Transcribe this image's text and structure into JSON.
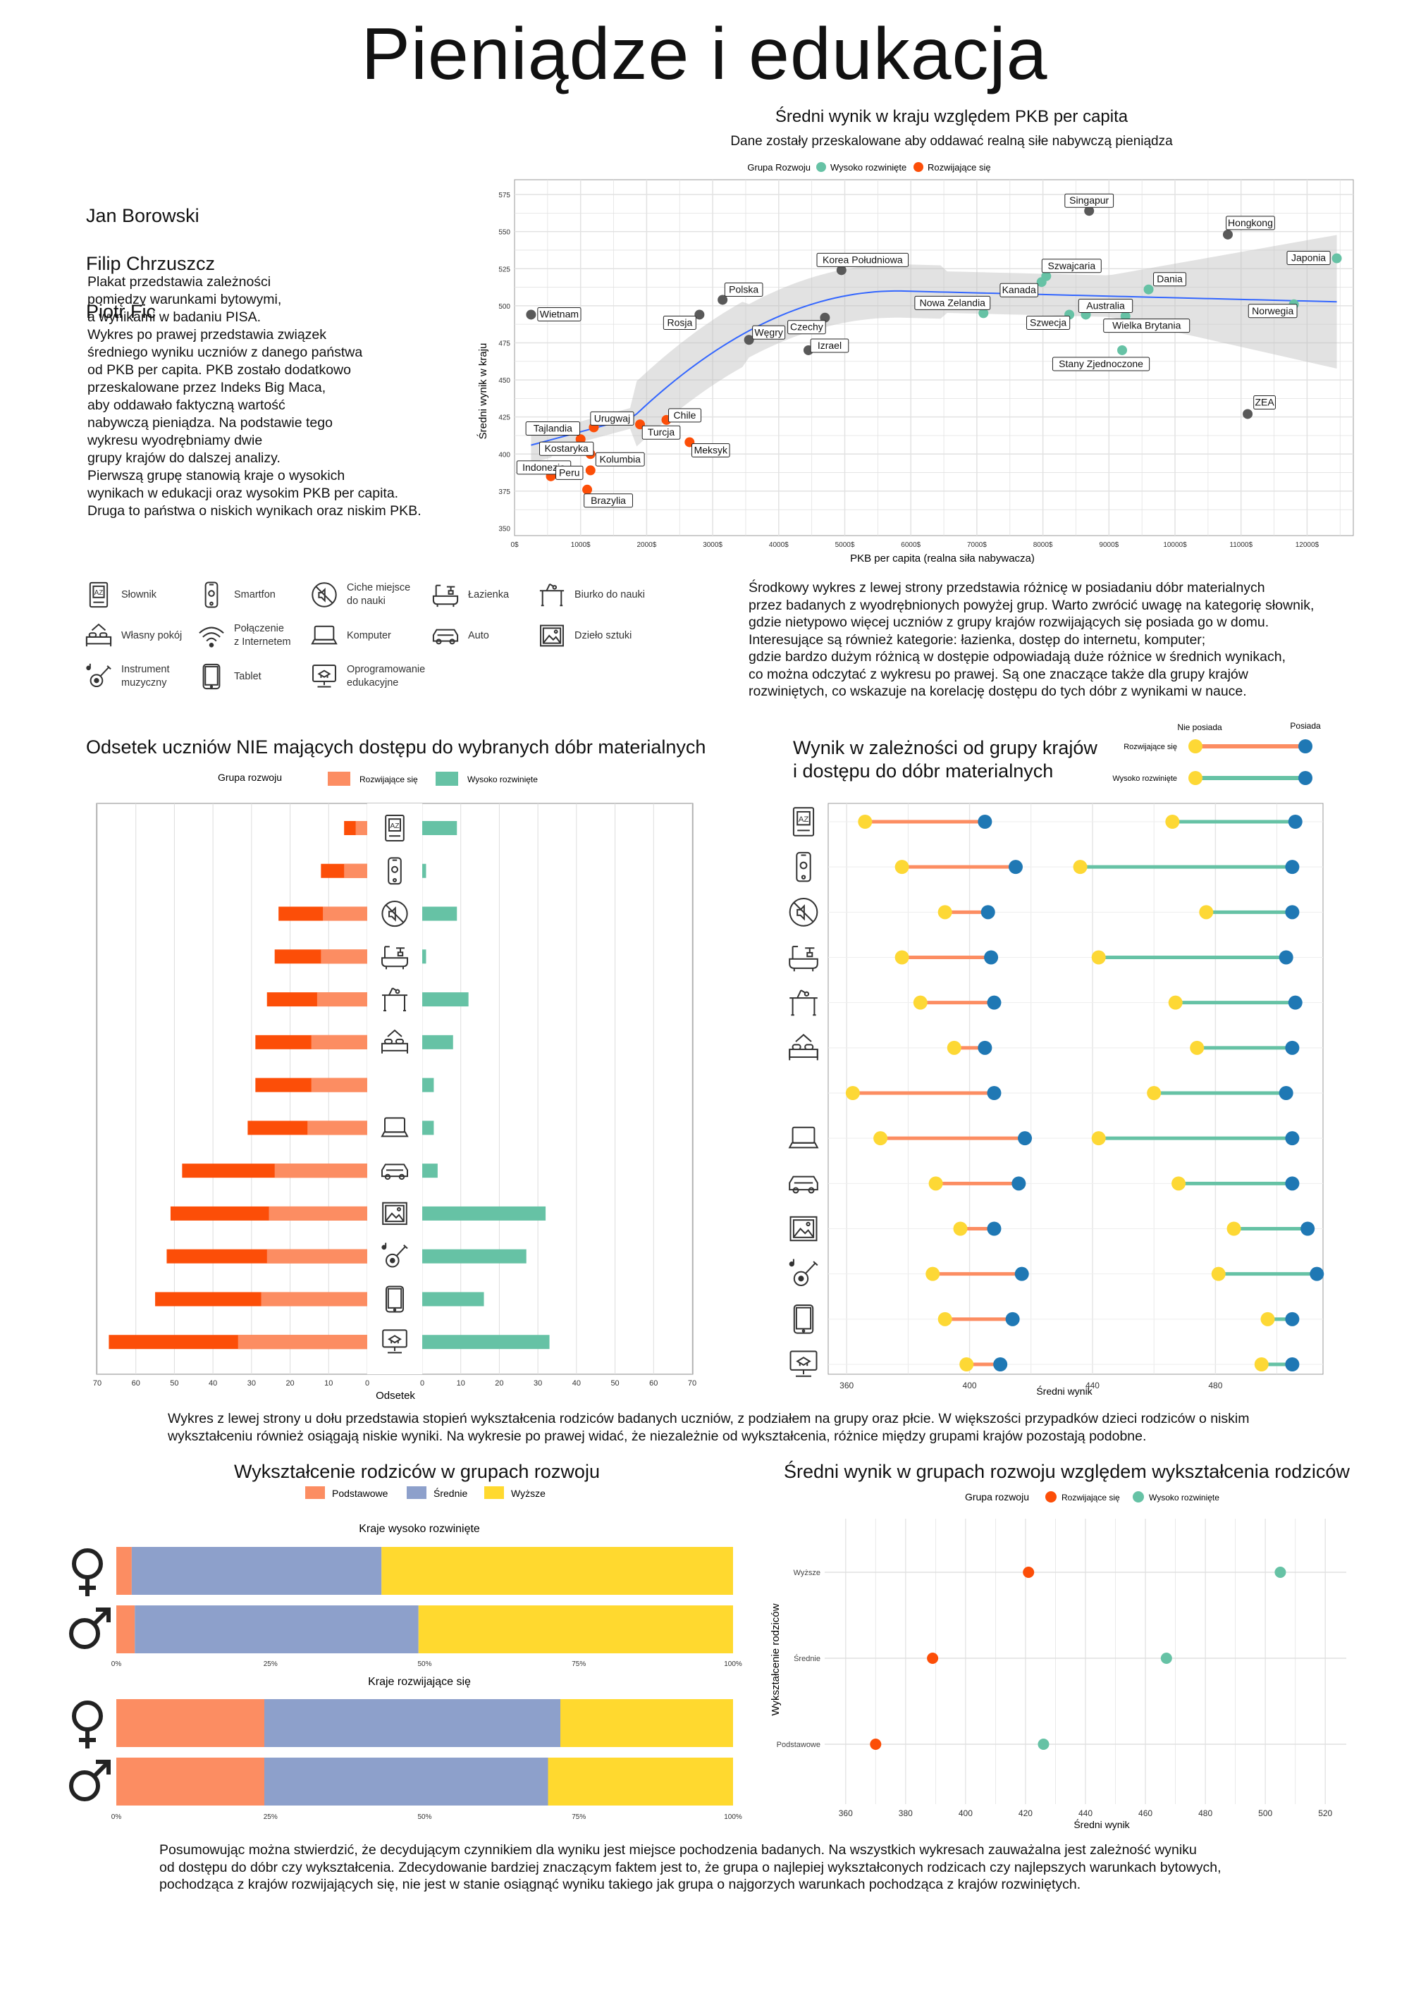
{
  "title": "Pieniądze i edukacja",
  "authors": [
    "Jan Borowski",
    "Filip Chrzuszcz",
    "Piotr Fic"
  ],
  "intro_text": "Plakat przedstawia zależności\npomiędzy warunkami bytowymi,\na wynikami w badaniu  PISA.\nWykres po prawej przedstawia związek\nśredniego wyniku uczniów z danego państwa\nod PKB per capita. PKB zostało dodatkowo\nprzeskalowane przez Indeks Big Maca,\naby oddawało faktyczną wartość\nnabywczą pieniądza. Na podstawie tego\nwykresu wyodrębniamy dwie\ngrupy krajów do dalszej analizy.\nPierwszą grupę stanowią kraje o wysokich\nwynikach w edukacji oraz wysokim PKB per capita.\nDruga to państwa o niskich wynikach oraz niskim PKB.",
  "colors": {
    "developed": "#66c2a5",
    "developing": "#fc4e08",
    "developing_light": "#fc8d62",
    "neutral": "#595959",
    "blue_dot": "#1f78b4",
    "yellow_dot": "#fdd835",
    "primary": "#fc8d62",
    "secondary": "#8da0cb",
    "higher": "#ffd92f"
  },
  "scatter": {
    "title": "Średni wynik w kraju względem PKB per capita",
    "subtitle": "Dane zostały przeskalowane aby oddawać realną  siłe nabywczą pieniądza",
    "legend_title": "Grupa Rozwoju",
    "legend_items": [
      "Wysoko rozwinięte",
      "Rozwijające się"
    ],
    "xlabel": "PKB per capita (realna siła nabywacza)",
    "ylabel": "Średni wynik w kraju",
    "x_ticks": [
      "0$",
      "1000$",
      "2000$",
      "3000$",
      "4000$",
      "5000$",
      "6000$",
      "7000$",
      "8000$",
      "9000$",
      "10000$",
      "11000$",
      "12000$"
    ],
    "y_ticks": [
      "350",
      "375",
      "400",
      "425",
      "450",
      "475",
      "500",
      "525",
      "550",
      "575"
    ]
  },
  "icons_legend": [
    {
      "icon": "dictionary-icon",
      "label": "Słownik"
    },
    {
      "icon": "smartphone-icon",
      "label": "Smartfon"
    },
    {
      "icon": "quiet-place-icon",
      "label": "Ciche miejsce\ndo nauki"
    },
    {
      "icon": "bathroom-icon",
      "label": "Łazienka"
    },
    {
      "icon": "desk-icon",
      "label": "Biurko do nauki"
    },
    {
      "icon": "own-room-icon",
      "label": "Własny pokój"
    },
    {
      "icon": "wifi-icon",
      "label": "Połączenie\nz Internetem"
    },
    {
      "icon": "computer-icon",
      "label": "Komputer"
    },
    {
      "icon": "car-icon",
      "label": "Auto"
    },
    {
      "icon": "artwork-icon",
      "label": "Dzieło sztuki"
    },
    {
      "icon": "instrument-icon",
      "label": "Instrument\nmuzyczny"
    },
    {
      "icon": "tablet-icon",
      "label": "Tablet"
    },
    {
      "icon": "edu-software-icon",
      "label": "Oprogramowanie\nedukacyjne"
    }
  ],
  "middle_text": "Środkowy wykres z lewej strony przedstawia różnicę w posiadaniu dóbr materialnych\nprzez badanych z wyodrębnionych powyżej grup. Warto zwrócić uwagę na kategorię słownik,\ngdzie nietypowo więcej uczniów z grupy krajów rozwijających się posiada go w domu.\nInteresujące są również kategorie: łazienka, dostęp do internetu, komputer;\ngdzie bardzo dużym różnicą w dostępie odpowiadają duże różnice w średnich wynikach,\nco można odczytać z wykresu po prawej. Są one znaczące także dla grupy krajów\nrozwiniętych, co wskazuje na korelację dostępu do tych dóbr z wynikami w nauce.",
  "bars": {
    "title": "Odsetek uczniów NIE mających dostępu do wybranych dóbr materialnych",
    "legend_title": "Grupa rozwoju",
    "legend_items": [
      "Rozwijające się",
      "Wysoko rozwinięte"
    ],
    "xlabel": "Odsetek",
    "ticks_left": [
      "70",
      "60",
      "50",
      "40",
      "30",
      "20",
      "10",
      "0"
    ],
    "ticks_right": [
      "0",
      "10",
      "20",
      "30",
      "40",
      "50",
      "60",
      "70"
    ]
  },
  "dumbbell": {
    "title": "Wynik w zależności od grupy krajów\ni dostępu do dóbr materialnych",
    "legend_labels": [
      "Nie posiada",
      "Posiada"
    ],
    "legend_groups": [
      "Rozwijające się",
      "Wysoko rozwinięte"
    ],
    "xlabel": "Średni wynik",
    "x_ticks": [
      "400",
      "440",
      "480"
    ],
    "x_tick_first": "360"
  },
  "lower_text": "Wykres z lewej strony u dołu przedstawia stopień wykształcenia rodziców badanych uczniów, z podziałem na grupy oraz płcie.  W większości przypadków dzieci rodziców o niskim\nwykształceniu również osiągają niskie wyniki. Na wykresie po prawej widać, że niezależnie od wykształcenia, różnice między grupami krajów pozostają podobne.",
  "education": {
    "title": "Wykształcenie rodziców w grupach rozwoju",
    "legend_items": [
      "Podstawowe",
      "Średnie",
      "Wyższe"
    ],
    "panel_titles": [
      "Kraje wysoko rozwinięte",
      "Kraje rozwijające się"
    ],
    "ticks": [
      "0%",
      "25%",
      "50%",
      "75%",
      "100%"
    ]
  },
  "edu_scores": {
    "title": "Średni wynik w grupach rozwoju względem wykształcenia rodziców",
    "legend_title": "Grupa rozwoju",
    "legend_items": [
      "Rozwijające się",
      "Wysoko rozwinięte"
    ],
    "ylabel": "Wykształcenie rodziców",
    "xlabel": "Średni wynik",
    "y_ticks": [
      "Wyższe",
      "Średnie",
      "Podstawowe"
    ],
    "x_ticks": [
      "360",
      "380",
      "400",
      "420",
      "440",
      "460",
      "480",
      "500",
      "520"
    ]
  },
  "summary_text": "Posumowując można stwierdzić, że decydującym czynnikiem dla wyniku jest miejsce pochodzenia badanych. Na wszystkich wykresach zauważalna jest zależność wyniku\nod dostępu do dóbr czy wykształcenia. Zdecydowanie bardziej znaczącym faktem jest to, że grupa o najlepiej wykształconych rodzicach czy najlepszych warunkach bytowych,\npochodząca z krajów rozwijających się, nie jest w stanie osiągnąć wyniku takiego jak grupa o najgorzych warunkach pochodząca z krajów rozwiniętych.",
  "chart_data": [
    {
      "type": "scatter",
      "title": "Średni wynik w kraju względem PKB per capita",
      "xlabel": "PKB per capita (realna siła nabywacza)",
      "ylabel": "Średni wynik w kraju",
      "xlim": [
        0,
        12700
      ],
      "ylim": [
        345,
        585
      ],
      "points": [
        {
          "label": "Singapur",
          "x": 8700,
          "y": 564,
          "group": "neutral"
        },
        {
          "label": "Hongkong",
          "x": 10800,
          "y": 548,
          "group": "neutral"
        },
        {
          "label": "Japonia",
          "x": 12450,
          "y": 532,
          "group": "developed"
        },
        {
          "label": "Korea Południowa",
          "x": 4950,
          "y": 524,
          "group": "neutral"
        },
        {
          "label": "Szwajcaria",
          "x": 8050,
          "y": 520,
          "group": "developed"
        },
        {
          "label": "Kanada",
          "x": 7980,
          "y": 516,
          "group": "developed"
        },
        {
          "label": "Dania",
          "x": 9600,
          "y": 511,
          "group": "developed"
        },
        {
          "label": "Polska",
          "x": 3150,
          "y": 504,
          "group": "neutral"
        },
        {
          "label": "Nowa Zelandia",
          "x": 7100,
          "y": 495,
          "group": "developed"
        },
        {
          "label": "Australia",
          "x": 8650,
          "y": 494,
          "group": "developed"
        },
        {
          "label": "Szwecja",
          "x": 8400,
          "y": 494,
          "group": "developed"
        },
        {
          "label": "Wielka Brytania",
          "x": 9250,
          "y": 493,
          "group": "developed"
        },
        {
          "label": "Norwegia",
          "x": 11800,
          "y": 501,
          "group": "developed"
        },
        {
          "label": "Wietnam",
          "x": 250,
          "y": 494,
          "group": "neutral"
        },
        {
          "label": "Rosja",
          "x": 2800,
          "y": 494,
          "group": "neutral"
        },
        {
          "label": "Czechy",
          "x": 4700,
          "y": 492,
          "group": "neutral"
        },
        {
          "label": "Węgry",
          "x": 3550,
          "y": 477,
          "group": "neutral"
        },
        {
          "label": "Izrael",
          "x": 4450,
          "y": 470,
          "group": "neutral"
        },
        {
          "label": "Stany Zjednoczone",
          "x": 9200,
          "y": 470,
          "group": "developed"
        },
        {
          "label": "ZEA",
          "x": 11100,
          "y": 427,
          "group": "neutral"
        },
        {
          "label": "Urugwaj",
          "x": 1200,
          "y": 418,
          "group": "developing"
        },
        {
          "label": "Chile",
          "x": 2300,
          "y": 423,
          "group": "developing"
        },
        {
          "label": "Turcja",
          "x": 1900,
          "y": 420,
          "group": "developing"
        },
        {
          "label": "Tajlandia",
          "x": 900,
          "y": 417,
          "group": "developing"
        },
        {
          "label": "Kostaryka",
          "x": 1000,
          "y": 410,
          "group": "developing"
        },
        {
          "label": "Meksyk",
          "x": 2650,
          "y": 408,
          "group": "developing"
        },
        {
          "label": "Kolumbia",
          "x": 1150,
          "y": 400,
          "group": "developing"
        },
        {
          "label": "Indonezja",
          "x": 550,
          "y": 385,
          "group": "developing"
        },
        {
          "label": "Peru",
          "x": 1150,
          "y": 389,
          "group": "developing"
        },
        {
          "label": "Brazylia",
          "x": 1100,
          "y": 376,
          "group": "developing"
        }
      ]
    },
    {
      "type": "bar",
      "title": "Odsetek uczniów NIE mających dostępu do wybranych dóbr materialnych",
      "xlabel": "Odsetek",
      "categories": [
        "dictionary",
        "smartphone",
        "quiet-place",
        "bathroom",
        "desk",
        "own-room",
        "internet",
        "computer",
        "car",
        "artwork",
        "instrument",
        "tablet",
        "edu-software"
      ],
      "series": [
        {
          "name": "Rozwijające się",
          "values": [
            6,
            12,
            23,
            24,
            26,
            29,
            29,
            31,
            48,
            51,
            52,
            55,
            67
          ]
        },
        {
          "name": "Wysoko rozwinięte",
          "values": [
            9,
            1,
            9,
            1,
            12,
            8,
            3,
            3,
            4,
            32,
            27,
            16,
            33
          ]
        }
      ]
    },
    {
      "type": "dumbbell",
      "title": "Wynik w zależności od grupy krajów i dostępu do dóbr materialnych",
      "xlabel": "Średni wynik",
      "xlim": [
        354,
        515
      ],
      "categories": [
        "dictionary",
        "smartphone",
        "quiet-place",
        "bathroom",
        "desk",
        "own-room",
        "internet",
        "computer",
        "car",
        "artwork",
        "instrument",
        "tablet",
        "edu-software"
      ],
      "series": [
        {
          "name": "Rozwijające się — Nie posiada",
          "values": [
            366,
            378,
            392,
            378,
            384,
            395,
            362,
            371,
            389,
            397,
            388,
            392,
            399
          ]
        },
        {
          "name": "Rozwijające się — Posiada",
          "values": [
            405,
            415,
            406,
            407,
            408,
            405,
            408,
            418,
            416,
            408,
            417,
            414,
            410
          ]
        },
        {
          "name": "Wysoko rozwinięte — Nie posiada",
          "values": [
            466,
            436,
            477,
            442,
            467,
            474,
            460,
            442,
            468,
            486,
            481,
            497,
            495
          ]
        },
        {
          "name": "Wysoko rozwinięte — Posiada",
          "values": [
            506,
            505,
            505,
            503,
            506,
            505,
            503,
            505,
            505,
            510,
            513,
            505,
            505
          ]
        }
      ]
    },
    {
      "type": "bar",
      "title": "Wykształcenie rodziców w grupach rozwoju",
      "stacked": true,
      "categories": [
        "Kraje wysoko rozwinięte — kobieta",
        "Kraje wysoko rozwinięte — mężczyzna",
        "Kraje rozwijające się — kobieta",
        "Kraje rozwijające się — mężczyzna"
      ],
      "series": [
        {
          "name": "Podstawowe",
          "values": [
            2.5,
            3,
            24,
            24
          ]
        },
        {
          "name": "Średnie",
          "values": [
            40.5,
            46,
            48,
            46
          ]
        },
        {
          "name": "Wyższe",
          "values": [
            57,
            51,
            28,
            30
          ]
        }
      ]
    },
    {
      "type": "scatter",
      "title": "Średni wynik w grupach rozwoju względem wykształcenia rodziców",
      "xlabel": "Średni wynik",
      "ylabel": "Wykształcenie rodziców",
      "categories": [
        "Wyższe",
        "Średnie",
        "Podstawowe"
      ],
      "xlim": [
        353,
        527
      ],
      "series": [
        {
          "name": "Rozwijające się",
          "values": [
            421,
            389,
            370
          ]
        },
        {
          "name": "Wysoko rozwinięte",
          "values": [
            505,
            467,
            426
          ]
        }
      ]
    }
  ]
}
